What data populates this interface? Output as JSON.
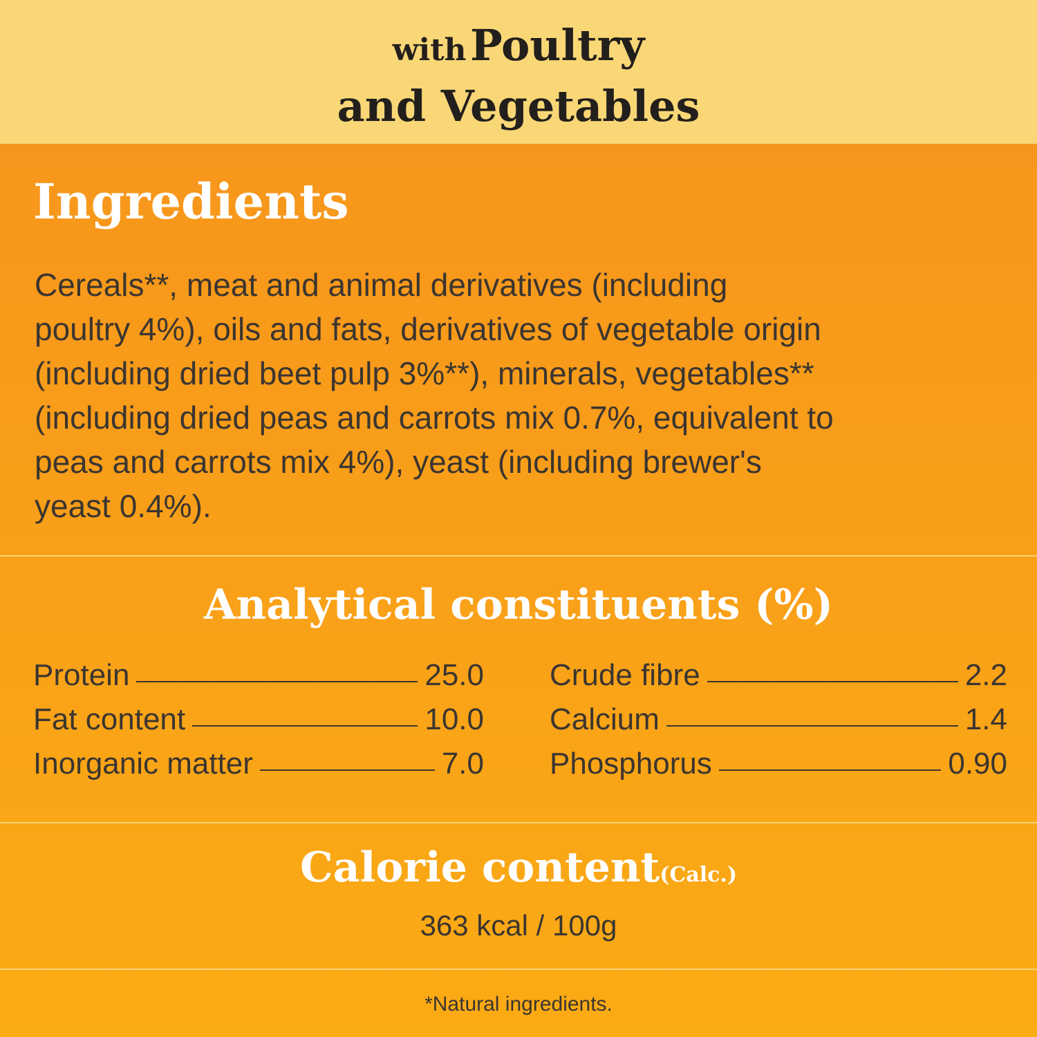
{
  "header": {
    "prefix": "with",
    "line1": "Poultry",
    "line2": "and Vegetables"
  },
  "ingredients": {
    "heading": "Ingredients",
    "lines": [
      "Cereals**, meat and animal derivatives (including",
      "poultry 4%), oils and fats, derivatives of vegetable origin",
      "(including dried beet pulp 3%**), minerals, vegetables**",
      "(including dried peas and carrots mix 0.7%, equivalent to",
      "peas and carrots mix 4%), yeast (including brewer's",
      "yeast 0.4%)."
    ]
  },
  "analytical": {
    "heading": "Analytical constituents (%)",
    "left": [
      {
        "name": "Protein",
        "value": "25.0"
      },
      {
        "name": "Fat content",
        "value": "10.0"
      },
      {
        "name": "Inorganic matter",
        "value": "7.0"
      }
    ],
    "right": [
      {
        "name": "Crude fibre",
        "value": "2.2"
      },
      {
        "name": "Calcium",
        "value": "1.4"
      },
      {
        "name": "Phosphorus",
        "value": "0.90"
      }
    ]
  },
  "calorie": {
    "heading": "Calorie content",
    "note": "(Calc.)",
    "value": "363 kcal / 100g"
  },
  "footnote": "*Natural ingredients."
}
